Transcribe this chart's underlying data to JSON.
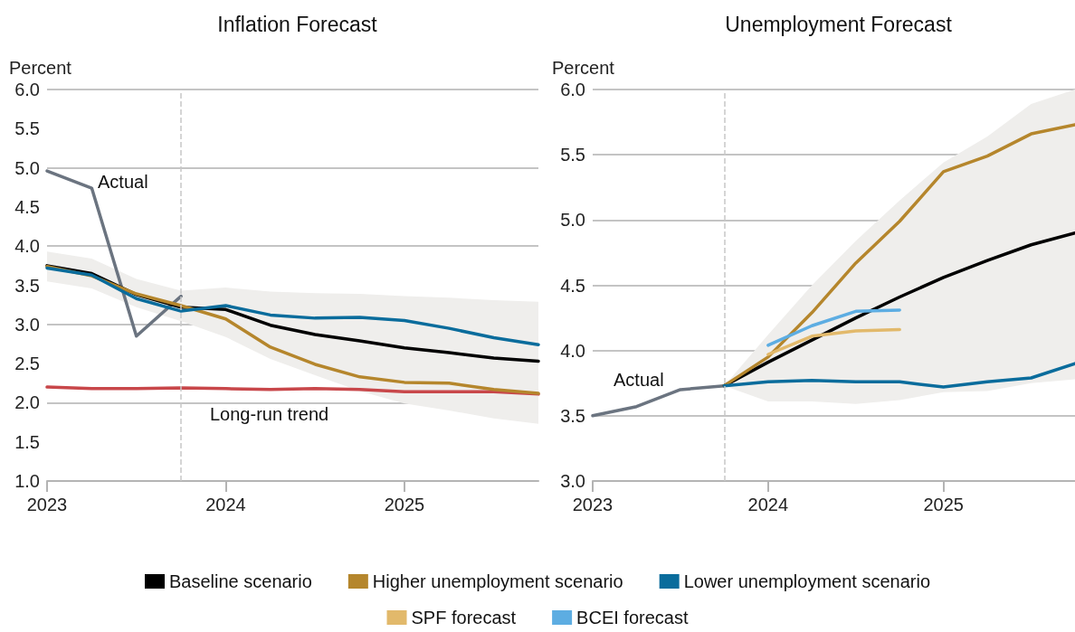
{
  "chart_data": [
    {
      "type": "line",
      "title": "Inflation Forecast",
      "ylabel": "Percent",
      "xlim": [
        2023,
        2025.75
      ],
      "xticks": [
        2023,
        2024,
        2025
      ],
      "ylim": [
        1,
        6
      ],
      "yticks": [
        {
          "value": 1,
          "label": "1.0"
        },
        {
          "value": 1.5,
          "label": "1.5"
        },
        {
          "value": 2,
          "label": "2.0"
        },
        {
          "value": 2.5,
          "label": "2.5"
        },
        {
          "value": 3,
          "label": "3.0"
        },
        {
          "value": 3.5,
          "label": "3.5"
        },
        {
          "value": 4,
          "label": "4.0"
        },
        {
          "value": 4.5,
          "label": "4.5"
        },
        {
          "value": 5,
          "label": "5.0"
        },
        {
          "value": 5.5,
          "label": "5.5"
        },
        {
          "value": 6,
          "label": "6.0"
        }
      ],
      "grid": "y",
      "legend": "bottom",
      "line_style": "solid",
      "marker": "none",
      "x": [
        2023,
        2023.25,
        2023.5,
        2023.75,
        2024,
        2024.25,
        2024.5,
        2024.75,
        2025,
        2025.25,
        2025.5,
        2025.75
      ],
      "ref_lines": [
        {
          "axis": "x",
          "value": 2023.75,
          "label": null,
          "color": "#c8c8c8",
          "line_style": "dashed"
        }
      ],
      "annotations": [
        "Actual",
        "Long-run trend"
      ],
      "series": [
        {
          "color": "#c8474a",
          "values": [
            2.2,
            2.18,
            2.18,
            2.19,
            2.18,
            2.17,
            2.18,
            2.17,
            2.14,
            2.14,
            2.14,
            2.11
          ]
        },
        {
          "color": "#6b7480",
          "x": [
            2023,
            2023.25,
            2023.5,
            2023.75
          ],
          "values": [
            4.96,
            4.74,
            2.85,
            3.36
          ]
        },
        {
          "name": "Baseline scenario",
          "color": "#000000",
          "values": [
            3.75,
            3.65,
            3.38,
            3.22,
            3.19,
            2.99,
            2.87,
            2.79,
            2.7,
            2.64,
            2.57,
            2.53
          ],
          "lower": [
            3.55,
            3.46,
            3.22,
            3.04,
            2.84,
            2.56,
            2.35,
            2.15,
            1.99,
            1.9,
            1.8,
            1.73
          ],
          "upper": [
            3.93,
            3.84,
            3.58,
            3.43,
            3.47,
            3.42,
            3.4,
            3.39,
            3.36,
            3.34,
            3.31,
            3.29
          ]
        },
        {
          "name": "Higher unemployment scenario",
          "color": "#b5862c",
          "values": [
            3.74,
            3.62,
            3.39,
            3.24,
            3.07,
            2.71,
            2.49,
            2.33,
            2.26,
            2.25,
            2.17,
            2.12
          ]
        },
        {
          "name": "Lower unemployment scenario",
          "color": "#0a6c9c",
          "values": [
            3.72,
            3.63,
            3.33,
            3.17,
            3.24,
            3.12,
            3.08,
            3.09,
            3.05,
            2.95,
            2.83,
            2.74
          ]
        }
      ]
    },
    {
      "type": "line",
      "title": "Unemployment Forecast",
      "ylabel": "Percent",
      "xlim": [
        2023,
        2025.75
      ],
      "xticks": [
        2023,
        2024,
        2025
      ],
      "ylim": [
        3,
        6
      ],
      "yticks": [
        {
          "value": 3,
          "label": "3.0"
        },
        {
          "value": 3.5,
          "label": "3.5"
        },
        {
          "value": 4,
          "label": "4.0"
        },
        {
          "value": 4.5,
          "label": "4.5"
        },
        {
          "value": 5,
          "label": "5.0"
        },
        {
          "value": 5.5,
          "label": "5.5"
        },
        {
          "value": 6,
          "label": "6.0"
        }
      ],
      "grid": "y",
      "legend": "bottom",
      "line_style": "solid",
      "marker": "none",
      "x": [
        2023.75,
        2024,
        2024.25,
        2024.5,
        2024.75,
        2025,
        2025.25,
        2025.5,
        2025.75
      ],
      "ref_lines": [
        {
          "axis": "x",
          "value": 2023.75,
          "label": null,
          "color": "#c8c8c8",
          "line_style": "dashed"
        }
      ],
      "annotations": [
        "Actual"
      ],
      "series": [
        {
          "color": "#6b7480",
          "x": [
            2023,
            2023.25,
            2023.5,
            2023.75
          ],
          "values": [
            3.5,
            3.57,
            3.7,
            3.73
          ]
        },
        {
          "name": "Baseline scenario",
          "color": "#000000",
          "values": [
            3.73,
            3.91,
            4.08,
            4.25,
            4.41,
            4.56,
            4.69,
            4.81,
            4.9
          ],
          "lower": [
            3.73,
            3.61,
            3.61,
            3.59,
            3.62,
            3.68,
            3.69,
            3.75,
            3.78
          ],
          "upper": [
            3.73,
            4.12,
            4.5,
            4.84,
            5.15,
            5.44,
            5.64,
            5.89,
            6.0
          ]
        },
        {
          "name": "Higher unemployment scenario",
          "color": "#b5862c",
          "values": [
            3.73,
            3.95,
            4.29,
            4.67,
            4.99,
            5.37,
            5.49,
            5.66,
            5.73
          ]
        },
        {
          "name": "Lower unemployment scenario",
          "color": "#0a6c9c",
          "values": [
            3.73,
            3.76,
            3.77,
            3.76,
            3.76,
            3.72,
            3.76,
            3.79,
            3.9
          ]
        },
        {
          "name": "SPF forecast",
          "color": "#e2b96b",
          "x": [
            2024,
            2024.25,
            2024.5,
            2024.75
          ],
          "values": [
            3.97,
            4.11,
            4.15,
            4.16
          ]
        },
        {
          "name": "BCEI forecast",
          "color": "#5dade2",
          "x": [
            2024,
            2024.25,
            2024.5,
            2024.75
          ],
          "values": [
            4.04,
            4.19,
            4.3,
            4.31
          ]
        }
      ]
    }
  ]
}
